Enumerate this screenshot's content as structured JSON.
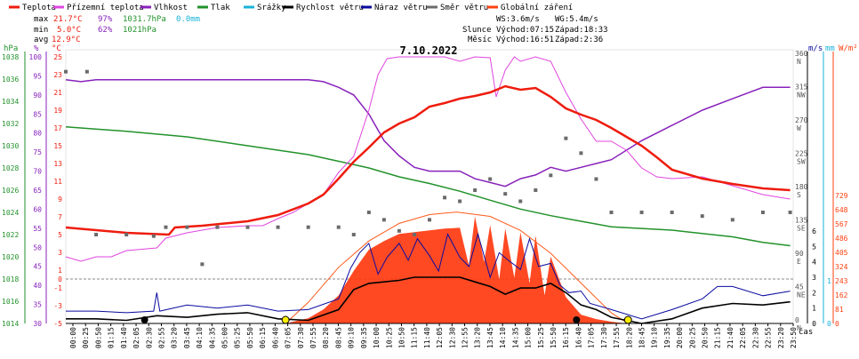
{
  "legend": [
    {
      "label": "Teplota",
      "color": "#ee1c0e"
    },
    {
      "label": "Přízemní teplota",
      "color": "#e046e0"
    },
    {
      "label": "Vlhkost",
      "color": "#8822bb"
    },
    {
      "label": "Tlak",
      "color": "#22922b"
    },
    {
      "label": "Srážky",
      "color": "#19b3d8"
    },
    {
      "label": "Rychlost větru",
      "color": "#000000"
    },
    {
      "label": "Náraz větru",
      "color": "#0a0aa0"
    },
    {
      "label": "Směr větru",
      "color": "#6b6b6b"
    },
    {
      "label": "Globální záření",
      "color": "#ff4010"
    }
  ],
  "stats": {
    "max": {
      "label": "max",
      "temp": "21.7°C",
      "hum": "97%",
      "press": "1031.7hPa",
      "rain": "0.0mm"
    },
    "min": {
      "label": "min",
      "temp": "5.0°C",
      "hum": "62%",
      "press": "1021hPa"
    },
    "avg": {
      "label": "avg",
      "temp": "12.9°C"
    }
  },
  "info": {
    "ws": "WS:3.6m/s",
    "wg": "WG:5.4m/s",
    "sun_label": "Slunce",
    "sunrise": "Východ:07:15",
    "sunset": "Západ:18:33",
    "moon_label": "Měsíc",
    "moonrise": "Východ:16:51",
    "moonset": "Západ:2:36"
  },
  "date": "7.10.2022",
  "axis_units": {
    "pressure": "hPa",
    "humidity": "%",
    "temperature": "°C",
    "wind": "m/s",
    "rain": "mm",
    "radiation": "W/m²",
    "time": "čas"
  },
  "chart_data": {
    "type": "line",
    "title": "7.10.2022",
    "x_time_labels": [
      "00:00",
      "00:25",
      "00:50",
      "01:15",
      "01:40",
      "02:05",
      "02:30",
      "02:55",
      "03:20",
      "03:45",
      "04:10",
      "04:35",
      "05:00",
      "05:25",
      "05:50",
      "06:15",
      "06:40",
      "07:05",
      "07:30",
      "07:55",
      "08:20",
      "08:45",
      "09:10",
      "09:35",
      "10:00",
      "10:25",
      "10:50",
      "11:15",
      "11:40",
      "12:05",
      "12:30",
      "12:55",
      "13:20",
      "13:45",
      "14:10",
      "14:35",
      "15:00",
      "15:25",
      "15:50",
      "16:15",
      "16:40",
      "17:05",
      "17:30",
      "17:55",
      "18:20",
      "18:45",
      "19:10",
      "19:35",
      "20:00",
      "20:25",
      "20:50",
      "21:15",
      "21:40",
      "22:05",
      "22:30",
      "22:55",
      "23:20",
      "23:50"
    ],
    "axes": {
      "pressure_hPa": {
        "ticks": [
          1014,
          1016,
          1018,
          1020,
          1022,
          1024,
          1026,
          1028,
          1030,
          1032,
          1034,
          1036,
          1038
        ]
      },
      "humidity_pct": {
        "ticks": [
          30,
          35,
          40,
          45,
          50,
          55,
          60,
          65,
          70,
          75,
          80,
          85,
          90,
          95,
          100
        ]
      },
      "temperature_C": {
        "ticks": [
          -5,
          -3,
          -1,
          0,
          1,
          3,
          5,
          7,
          9,
          11,
          13,
          15,
          17,
          19,
          21,
          23,
          25
        ]
      },
      "wind_dir": {
        "ticks": [
          "N",
          "NE",
          "E",
          "SE",
          "S",
          "SW",
          "W",
          "NW",
          "N"
        ],
        "degrees": [
          0,
          45,
          90,
          135,
          180,
          225,
          270,
          315,
          360
        ]
      },
      "wind_ms": {
        "ticks": [
          0,
          1,
          2,
          3,
          4,
          5,
          6
        ]
      },
      "rain_mm": {
        "ticks": [
          0,
          1
        ]
      },
      "radiation_Wm2": {
        "ticks": [
          0,
          81,
          162,
          243,
          324,
          405,
          486,
          567,
          648,
          729
        ]
      }
    },
    "series": [
      {
        "name": "Teplota",
        "unit": "°C",
        "hours": [
          0,
          2,
          3.4,
          3.6,
          4.5,
          6,
          7,
          8,
          8.5,
          9,
          9.5,
          10,
          10.5,
          11,
          11.5,
          12,
          12.5,
          13,
          13.5,
          14,
          14.5,
          15,
          15.5,
          16,
          16.5,
          17,
          17.5,
          18,
          18.5,
          19,
          19.5,
          20,
          21,
          22,
          23,
          23.9
        ],
        "values": [
          5.8,
          5.2,
          5.0,
          5.8,
          6.0,
          6.5,
          7.2,
          8.5,
          9.5,
          11.3,
          13.2,
          14.8,
          16.5,
          17.5,
          18.2,
          19.4,
          19.8,
          20.3,
          20.6,
          21.0,
          21.7,
          21.3,
          21.5,
          20.5,
          19.2,
          18.5,
          17.9,
          17.0,
          16.0,
          15.0,
          13.7,
          12.3,
          11.3,
          10.7,
          10.2,
          10.0
        ]
      },
      {
        "name": "Přízemní teplota",
        "unit": "°C",
        "hours": [
          0,
          0.5,
          1,
          1.5,
          2,
          3,
          3.3,
          4,
          5,
          6,
          6.5,
          7,
          7.5,
          8,
          8.5,
          9,
          9.5,
          10,
          10.3,
          10.6,
          11,
          11.5,
          12,
          12.5,
          13,
          13.5,
          14,
          14.2,
          14.5,
          14.8,
          15,
          15.5,
          16,
          16.5,
          17,
          17.5,
          18,
          18.5,
          19,
          19.5,
          20,
          21,
          22,
          23,
          23.9
        ],
        "values": [
          2.5,
          2.0,
          2.5,
          2.5,
          3.2,
          3.5,
          4.6,
          5.2,
          5.8,
          6.0,
          6.0,
          6.8,
          7.5,
          8.5,
          9.5,
          12,
          13.8,
          19,
          23,
          24.8,
          25,
          25,
          25,
          25,
          24.5,
          25,
          24.9,
          20.5,
          23.5,
          25,
          24.5,
          25,
          24.5,
          21,
          18,
          15.5,
          15.5,
          14.5,
          12.5,
          11.5,
          11.3,
          11.5,
          10.5,
          9.5,
          9.0
        ]
      },
      {
        "name": "Vlhkost",
        "unit": "%",
        "hours": [
          0,
          0.5,
          1,
          2,
          3,
          4,
          5,
          6,
          7,
          8,
          8.5,
          9,
          9.5,
          10,
          10.5,
          11,
          11.5,
          12,
          12.5,
          13,
          13.5,
          14,
          14.5,
          15,
          15.5,
          16,
          16.5,
          17,
          17.5,
          18,
          19,
          20,
          21,
          22,
          23,
          23.9
        ],
        "values": [
          94,
          93.5,
          94,
          94,
          94,
          94,
          94,
          94,
          94,
          94,
          93.5,
          92,
          90,
          85,
          78,
          74,
          71,
          70,
          70,
          70,
          68,
          67,
          66,
          68,
          69,
          71,
          70,
          71,
          72,
          73,
          78,
          82,
          86,
          89,
          92,
          92
        ]
      },
      {
        "name": "Tlak",
        "unit": "hPa",
        "hours": [
          0,
          2,
          4,
          6,
          8,
          9,
          10,
          11,
          12,
          13,
          14,
          15,
          16,
          17,
          18,
          20,
          22,
          23,
          23.9
        ],
        "values": [
          1031.7,
          1031.3,
          1030.8,
          1030.0,
          1029.2,
          1028.6,
          1028.0,
          1027.2,
          1026.6,
          1025.9,
          1025.1,
          1024.3,
          1023.7,
          1023.2,
          1022.7,
          1022.4,
          1021.8,
          1021.3,
          1021.0
        ]
      },
      {
        "name": "Srážky",
        "unit": "mm",
        "hours": [
          0,
          23.9
        ],
        "values": [
          0.0,
          0.0
        ]
      },
      {
        "name": "Rychlost větru",
        "unit": "m/s",
        "hours": [
          0,
          1,
          2,
          3,
          4,
          5,
          6,
          7,
          8,
          9,
          9.5,
          10,
          10.5,
          11,
          11.5,
          12,
          12.5,
          13,
          13.5,
          14,
          14.5,
          15,
          15.5,
          16,
          16.5,
          17,
          17.5,
          18,
          19,
          20,
          21,
          22,
          23,
          23.9
        ],
        "values": [
          0.3,
          0.3,
          0.2,
          0.5,
          0.4,
          0.6,
          0.7,
          0.3,
          0.2,
          0.9,
          2.2,
          2.6,
          2.7,
          2.8,
          3.0,
          3.0,
          3.0,
          3.0,
          2.7,
          2.4,
          1.9,
          2.3,
          2.3,
          2.6,
          2.0,
          1.2,
          0.9,
          0.4,
          0.0,
          0.3,
          1.0,
          1.3,
          1.2,
          1.4
        ]
      },
      {
        "name": "Náraz větru",
        "unit": "m/s",
        "hours": [
          0,
          1,
          2,
          2.9,
          3,
          3.1,
          4,
          5,
          6,
          7,
          8,
          9,
          9.4,
          9.7,
          10,
          10.3,
          10.6,
          11,
          11.3,
          11.6,
          12,
          12.3,
          12.6,
          13,
          13.3,
          13.6,
          14,
          14.3,
          14.6,
          15,
          15.3,
          15.6,
          16,
          16.3,
          16.6,
          17,
          17.3,
          18,
          19,
          20,
          21,
          21.5,
          22,
          23,
          23.9
        ],
        "values": [
          0.8,
          0.8,
          0.7,
          0.8,
          2.0,
          0.8,
          1.2,
          1.0,
          1.2,
          0.8,
          0.9,
          1.6,
          3.6,
          4.6,
          5.2,
          3.2,
          4.3,
          5.2,
          4.1,
          5.5,
          4.4,
          3.4,
          5.8,
          4.3,
          3.7,
          5.8,
          3.0,
          4.6,
          4.1,
          3.5,
          5.5,
          3.7,
          3.9,
          2.5,
          2.0,
          2.1,
          1.3,
          0.9,
          0.3,
          0.9,
          1.6,
          2.4,
          2.4,
          1.8,
          2.1
        ]
      },
      {
        "name": "Směr větru",
        "unit": "°",
        "hours": [
          0,
          0.7,
          1,
          2,
          2.9,
          3.3,
          4.0,
          4.5,
          5,
          6,
          7,
          8,
          9,
          9.5,
          10,
          10.5,
          11,
          11.5,
          12,
          12.5,
          13,
          13.5,
          14,
          14.5,
          15,
          15.5,
          16,
          16.5,
          17,
          17.5,
          18,
          19,
          20,
          21,
          22,
          23,
          23.9
        ],
        "values": [
          340,
          340,
          120,
          120,
          118,
          130,
          130,
          80,
          130,
          130,
          130,
          130,
          130,
          120,
          150,
          140,
          125,
          120,
          140,
          170,
          165,
          180,
          195,
          175,
          165,
          180,
          200,
          250,
          230,
          195,
          150,
          150,
          150,
          145,
          140,
          150,
          150
        ]
      },
      {
        "name": "Globální záření",
        "unit": "W/m²",
        "hours": [
          7.25,
          7.5,
          8,
          8.5,
          9,
          9.5,
          10,
          10.5,
          11,
          11.5,
          12,
          12.5,
          13,
          13.3,
          13.5,
          13.8,
          14,
          14.3,
          14.5,
          14.8,
          15,
          15.3,
          15.5,
          15.8,
          16,
          16.5,
          17,
          17.5,
          18,
          18.5
        ],
        "values": [
          0,
          10,
          30,
          80,
          160,
          300,
          420,
          470,
          510,
          520,
          530,
          540,
          545,
          330,
          610,
          350,
          560,
          250,
          540,
          260,
          520,
          230,
          500,
          160,
          380,
          150,
          50,
          25,
          10,
          0
        ]
      },
      {
        "name": "Teoretické záření",
        "unit": "W/m²",
        "hours": [
          7.25,
          8,
          9,
          10,
          11,
          12,
          12.9,
          14,
          15,
          16,
          17,
          18,
          18.55
        ],
        "values": [
          0,
          120,
          320,
          470,
          570,
          620,
          635,
          610,
          530,
          400,
          230,
          60,
          0
        ]
      }
    ]
  }
}
